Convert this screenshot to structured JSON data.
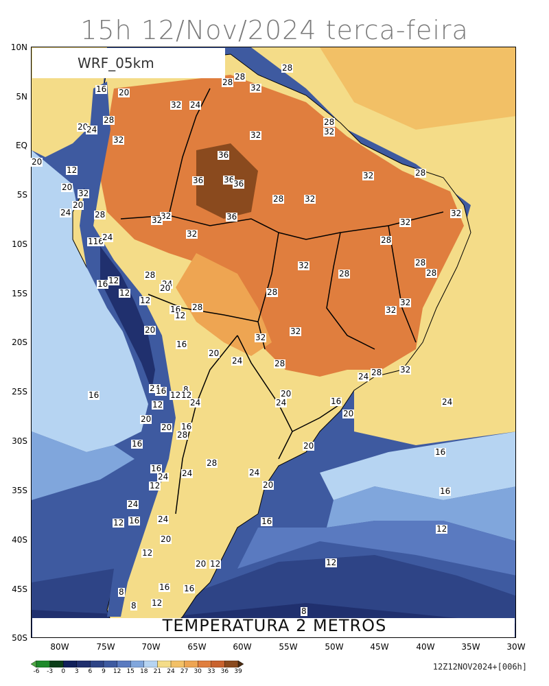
{
  "title": "15h 12/Nov/2024 terca-feira",
  "model_label": "WRF_05km",
  "variable_label": "TEMPERATURA 2 METROS",
  "run_info": "12Z12NOV2024+[006h]",
  "lat_labels": [
    "10N",
    "5N",
    "EQ",
    "5S",
    "10S",
    "15S",
    "20S",
    "25S",
    "30S",
    "35S",
    "40S",
    "45S",
    "50S"
  ],
  "lon_labels": [
    "80W",
    "75W",
    "70W",
    "65W",
    "60W",
    "55W",
    "50W",
    "45W",
    "40W",
    "35W",
    "30W"
  ],
  "colorbar": {
    "labels": [
      "-6",
      "-3",
      "0",
      "3",
      "6",
      "9",
      "12",
      "15",
      "18",
      "21",
      "24",
      "27",
      "30",
      "33",
      "36",
      "39"
    ],
    "colors": [
      "#4fa845",
      "#1e8a2a",
      "#0b3e18",
      "#10205a",
      "#20306e",
      "#2e4486",
      "#3e5aa0",
      "#5a7ac0",
      "#80a6dc",
      "#b6d4f2",
      "#f4dc88",
      "#f2c066",
      "#eea552",
      "#e07e3e",
      "#c8622e",
      "#8a4a1e",
      "#4a2a10"
    ]
  },
  "contour_labels": [
    {
      "text": "28"
    },
    {
      "text": "28"
    },
    {
      "text": "28"
    },
    {
      "text": "32"
    },
    {
      "text": "16"
    },
    {
      "text": "20"
    },
    {
      "text": "32"
    },
    {
      "text": "24"
    },
    {
      "text": "20"
    },
    {
      "text": "24"
    },
    {
      "text": "28"
    },
    {
      "text": "32"
    },
    {
      "text": "28"
    },
    {
      "text": "32"
    },
    {
      "text": "32"
    },
    {
      "text": "20"
    },
    {
      "text": "12"
    },
    {
      "text": "36"
    },
    {
      "text": "28"
    },
    {
      "text": "20"
    },
    {
      "text": "36"
    },
    {
      "text": "36"
    },
    {
      "text": "36"
    },
    {
      "text": "32"
    },
    {
      "text": "32"
    },
    {
      "text": "20"
    },
    {
      "text": "24"
    },
    {
      "text": "28"
    },
    {
      "text": "32"
    },
    {
      "text": "28"
    },
    {
      "text": "36"
    },
    {
      "text": "32"
    },
    {
      "text": "32"
    },
    {
      "text": "32"
    },
    {
      "text": "116"
    },
    {
      "text": "24"
    },
    {
      "text": "32"
    },
    {
      "text": "28"
    },
    {
      "text": "32"
    },
    {
      "text": "28"
    },
    {
      "text": "28"
    },
    {
      "text": "16"
    },
    {
      "text": "12"
    },
    {
      "text": "28"
    },
    {
      "text": "24"
    },
    {
      "text": "20"
    },
    {
      "text": "12"
    },
    {
      "text": "12"
    },
    {
      "text": "28"
    },
    {
      "text": "32"
    },
    {
      "text": "28"
    },
    {
      "text": "32"
    },
    {
      "text": "16"
    },
    {
      "text": "12"
    },
    {
      "text": "28"
    },
    {
      "text": "32"
    },
    {
      "text": "20"
    },
    {
      "text": "32"
    },
    {
      "text": "32"
    },
    {
      "text": "16"
    },
    {
      "text": "20"
    },
    {
      "text": "24"
    },
    {
      "text": "28"
    },
    {
      "text": "24"
    },
    {
      "text": "28"
    },
    {
      "text": "32"
    },
    {
      "text": "16"
    },
    {
      "text": "24"
    },
    {
      "text": "8"
    },
    {
      "text": "12"
    },
    {
      "text": "12"
    },
    {
      "text": "16"
    },
    {
      "text": "20"
    },
    {
      "text": "24"
    },
    {
      "text": "16"
    },
    {
      "text": "24"
    },
    {
      "text": "12"
    },
    {
      "text": "20"
    },
    {
      "text": "24"
    },
    {
      "text": "20"
    },
    {
      "text": "16"
    },
    {
      "text": "20"
    },
    {
      "text": "28"
    },
    {
      "text": "16"
    },
    {
      "text": "20"
    },
    {
      "text": "16"
    },
    {
      "text": "28"
    },
    {
      "text": "24"
    },
    {
      "text": "16"
    },
    {
      "text": "24"
    },
    {
      "text": "24"
    },
    {
      "text": "12"
    },
    {
      "text": "20"
    },
    {
      "text": "16"
    },
    {
      "text": "24"
    },
    {
      "text": "12"
    },
    {
      "text": "16"
    },
    {
      "text": "16"
    },
    {
      "text": "24"
    },
    {
      "text": "12"
    },
    {
      "text": "20"
    },
    {
      "text": "12"
    },
    {
      "text": "20"
    },
    {
      "text": "12"
    },
    {
      "text": "12"
    },
    {
      "text": "16"
    },
    {
      "text": "16"
    },
    {
      "text": "8"
    },
    {
      "text": "12"
    },
    {
      "text": "8"
    },
    {
      "text": "8"
    }
  ]
}
